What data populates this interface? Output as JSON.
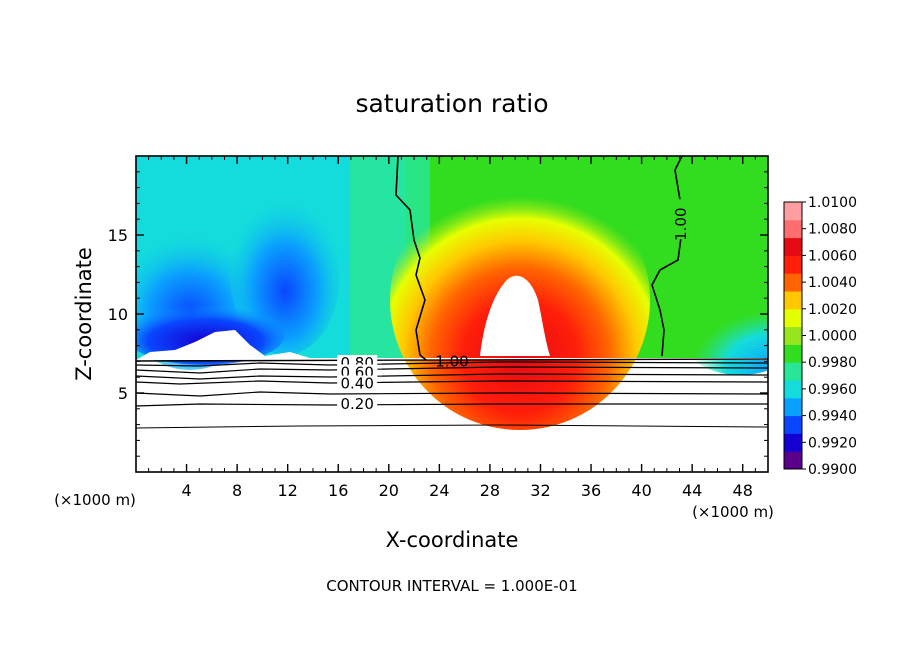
{
  "chart_data": {
    "type": "heatmap",
    "title": "saturation ratio",
    "xlabel": "X-coordinate",
    "ylabel": "Z-coordinate",
    "x_unit_left": "(×1000 m)",
    "x_unit_right": "(×1000 m)",
    "xlim": [
      0,
      50
    ],
    "ylim": [
      0,
      20
    ],
    "x_ticks": [
      4,
      8,
      12,
      16,
      20,
      24,
      28,
      32,
      36,
      40,
      44,
      48
    ],
    "y_ticks": [
      5,
      10,
      15
    ],
    "colorbar": {
      "ticks": [
        "1.0100",
        "1.0080",
        "1.0060",
        "1.0040",
        "1.0020",
        "1.0000",
        "0.9980",
        "0.9960",
        "0.9940",
        "0.9920",
        "0.9900"
      ],
      "min": 0.99,
      "max": 1.01,
      "colors": [
        "#5a008c",
        "#1400d2",
        "#0a46ff",
        "#0aa0ff",
        "#14dcdc",
        "#28e696",
        "#32dc1e",
        "#96e61e",
        "#e6ff00",
        "#ffc800",
        "#ff6400",
        "#ff1e0a",
        "#e60a14",
        "#ff6e6e",
        "#ff9ea0"
      ]
    },
    "contour_labels": [
      {
        "text": "1.00",
        "x": 43.5,
        "y": 16.0
      },
      {
        "text": "1.00",
        "x": 25.0,
        "y": 7.0
      },
      {
        "text": "0.80",
        "x": 17.5,
        "y": 6.9
      },
      {
        "text": "0.60",
        "x": 17.5,
        "y": 6.3
      },
      {
        "text": "0.40",
        "x": 17.5,
        "y": 5.6
      },
      {
        "text": "0.20",
        "x": 17.5,
        "y": 4.3
      }
    ],
    "contour_interval": "CONTOUR INTERVAL = 1.000E-01"
  }
}
